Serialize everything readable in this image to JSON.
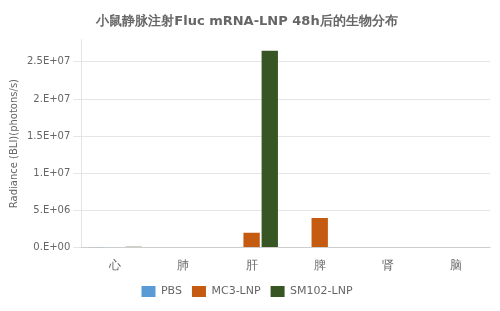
{
  "chart_data": {
    "type": "bar",
    "title": "小鼠静脉注射Fluc mRNA-LNP 48h后的生物分布",
    "ylabel": "Radiance (BLI)(photons/s)",
    "categories": [
      "心",
      "肺",
      "肝",
      "脾",
      "肾",
      "脑"
    ],
    "series": [
      {
        "name": "PBS",
        "color": "#5b9bd5",
        "values": [
          50000,
          0,
          0,
          0,
          0,
          0
        ]
      },
      {
        "name": "MC3-LNP",
        "color": "#c55a11",
        "values": [
          0,
          0,
          2000000,
          4000000,
          0,
          0
        ]
      },
      {
        "name": "SM102-LNP",
        "color": "#375623",
        "values": [
          100000,
          0,
          26500000,
          0,
          0,
          0
        ]
      }
    ],
    "ylim": [
      0,
      28000000
    ],
    "yticks": [
      {
        "value": 0,
        "label": "0.E+00"
      },
      {
        "value": 5000000,
        "label": "5.E+06"
      },
      {
        "value": 10000000,
        "label": "1.E+07"
      },
      {
        "value": 15000000,
        "label": "1.5E+07"
      },
      {
        "value": 20000000,
        "label": "2.E+07"
      },
      {
        "value": 25000000,
        "label": "2.5E+07"
      }
    ],
    "grid": true,
    "legend": "bottom"
  }
}
